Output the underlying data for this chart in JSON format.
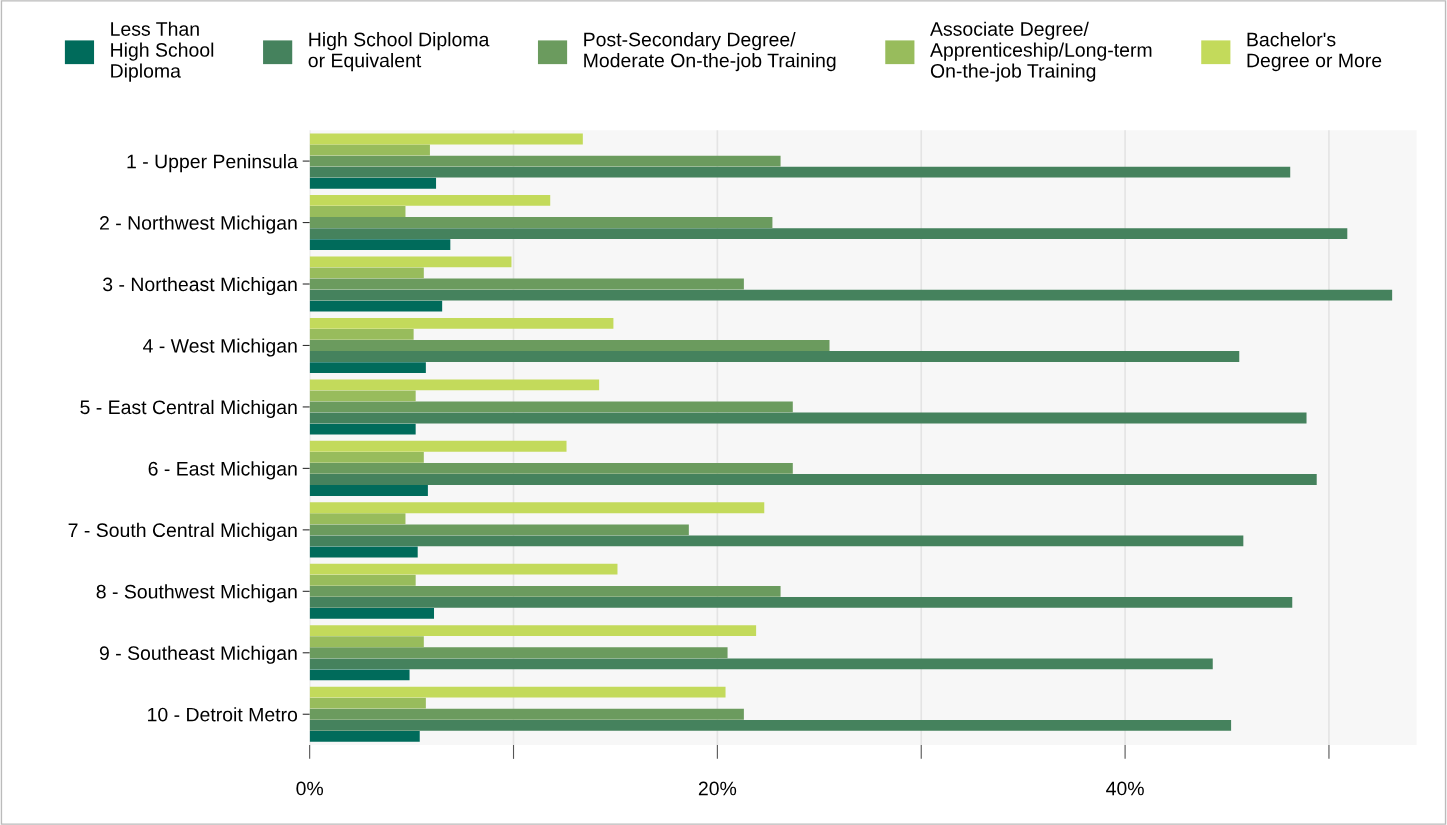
{
  "chart_data": {
    "type": "bar",
    "orientation": "horizontal",
    "legend": "top",
    "grid": "x",
    "categories": [
      "1 - Upper Peninsula",
      "2 - Northwest Michigan",
      "3 - Northeast Michigan",
      "4 - West Michigan",
      "5 - East Central Michigan",
      "6 - East Michigan",
      "7 - South Central Michigan",
      "8 - Southwest Michigan",
      "9 - Southeast Michigan",
      "10 - Detroit Metro"
    ],
    "xlim": [
      0,
      54.3
    ],
    "xticks": [
      {
        "value": 0,
        "label": "0%"
      },
      {
        "value": 10,
        "label": null
      },
      {
        "value": 20,
        "label": "20%"
      },
      {
        "value": 30,
        "label": null
      },
      {
        "value": 40,
        "label": "40%"
      },
      {
        "value": 50,
        "label": null
      }
    ],
    "series": [
      {
        "name": "Less Than\nHigh School\nDiploma",
        "color": "#006b5b",
        "values": [
          6.2,
          6.9,
          6.5,
          5.7,
          5.2,
          5.8,
          5.3,
          6.1,
          4.9,
          5.4
        ]
      },
      {
        "name": "High School Diploma\nor Equivalent",
        "color": "#45825d",
        "values": [
          48.1,
          50.9,
          53.1,
          45.6,
          48.9,
          49.4,
          45.8,
          48.2,
          44.3,
          45.2
        ]
      },
      {
        "name": "Post-Secondary Degree/\nModerate On-the-job Training",
        "color": "#6b9b5e",
        "values": [
          23.1,
          22.7,
          21.3,
          25.5,
          23.7,
          23.7,
          18.6,
          23.1,
          20.5,
          21.3
        ]
      },
      {
        "name": "Associate Degree/\nApprenticeship/Long-term\nOn-the-job Training",
        "color": "#98bc5c",
        "values": [
          5.9,
          4.7,
          5.6,
          5.1,
          5.2,
          5.6,
          4.7,
          5.2,
          5.6,
          5.7
        ]
      },
      {
        "name": "Bachelor's\nDegree or More",
        "color": "#c3da5b",
        "values": [
          13.4,
          11.8,
          9.9,
          14.9,
          14.2,
          12.6,
          22.3,
          15.1,
          21.9,
          20.4
        ]
      }
    ]
  }
}
